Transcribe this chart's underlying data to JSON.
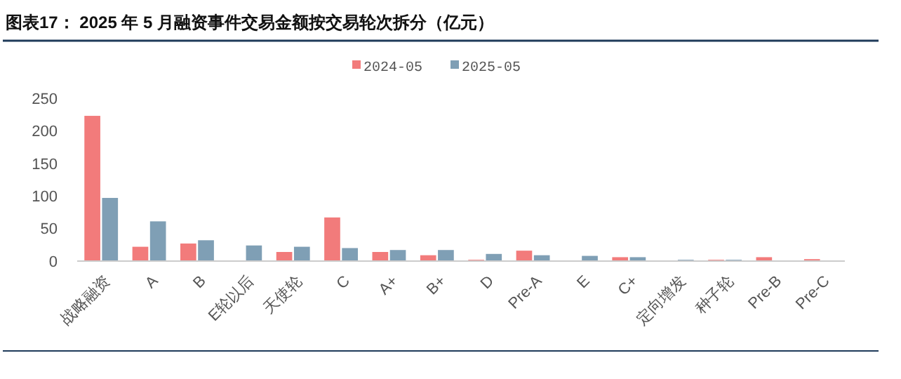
{
  "chart_data": {
    "type": "bar",
    "title": "图表17： 2025 年 5 月融资事件交易金额按交易轮次拆分（亿元）",
    "categories": [
      "战略融资",
      "A",
      "B",
      "E轮以后",
      "天使轮",
      "C",
      "A+",
      "B+",
      "D",
      "Pre-A",
      "E",
      "C+",
      "定向增发",
      "种子轮",
      "Pre-B",
      "Pre-C"
    ],
    "series": [
      {
        "name": "2024-05",
        "color": "#f27b7b",
        "values": [
          223,
          22,
          27,
          0,
          14,
          67,
          14,
          9,
          2,
          16,
          0,
          6,
          0,
          2,
          6,
          3
        ]
      },
      {
        "name": "2025-05",
        "color": "#7f9fb5",
        "values": [
          97,
          61,
          32,
          24,
          22,
          20,
          17,
          17,
          11,
          9,
          8,
          6,
          2,
          2,
          0,
          0
        ]
      }
    ],
    "ylim": [
      0,
      250
    ],
    "yticks": [
      0,
      50,
      100,
      150,
      200,
      250
    ],
    "grid": false,
    "legend": "top"
  }
}
